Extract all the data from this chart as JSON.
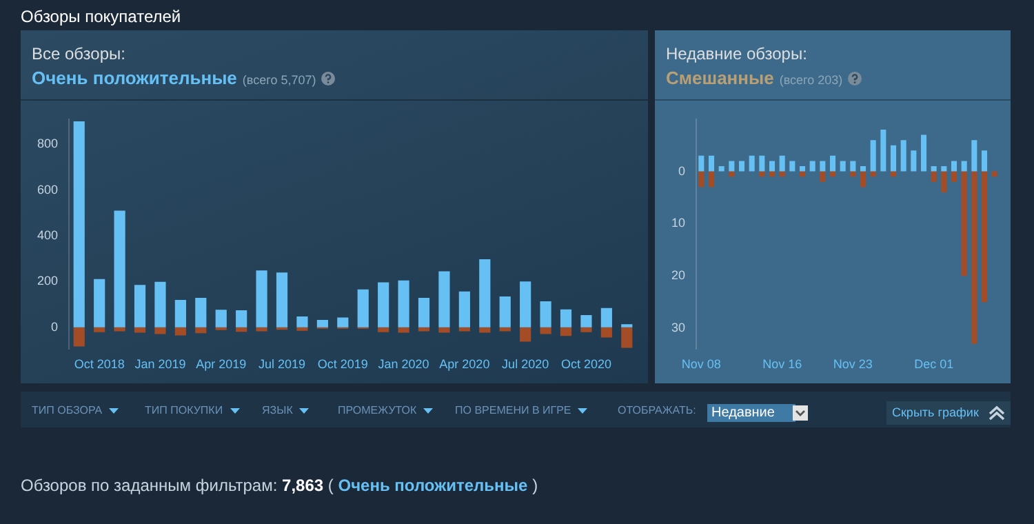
{
  "chart_data": [
    {
      "type": "other",
      "title": "Обзоры покупателей"
    },
    {
      "type": "bar",
      "title": "Все обзоры:",
      "subtitle": "Очень положительные",
      "annotations": [
        "(всего 5,707)"
      ],
      "stacked": true,
      "categories": [
        null,
        "Oct 2018",
        null,
        null,
        "Jan 2019",
        null,
        null,
        "Apr 2019",
        null,
        null,
        "Jul 2019",
        null,
        null,
        "Oct 2019",
        null,
        null,
        "Jan 2020",
        null,
        null,
        "Apr 2020",
        null,
        null,
        "Jul 2020",
        null,
        null,
        "Oct 2020",
        null,
        null
      ],
      "series": [
        {
          "color": "#66c0f4",
          "values": [
            900,
            211,
            510,
            186,
            199,
            120,
            129,
            77,
            75,
            249,
            240,
            48,
            33,
            43,
            166,
            197,
            205,
            129,
            245,
            157,
            298,
            135,
            201,
            114,
            79,
            54,
            85,
            14
          ]
        },
        {
          "color": "#a34c25",
          "values": [
            -83,
            -21,
            -17,
            -23,
            -29,
            -35,
            -25,
            -12,
            -19,
            -17,
            -10,
            -15,
            -6,
            -6,
            -6,
            -21,
            -23,
            -17,
            -23,
            -17,
            -23,
            -17,
            -62,
            -29,
            -37,
            -21,
            -44,
            -89
          ]
        }
      ],
      "ylim": [
        -95,
        910
      ],
      "yticks": [
        0,
        200,
        400,
        600,
        800
      ]
    },
    {
      "type": "bar",
      "title": "Недавние обзоры:",
      "subtitle": "Смешанные",
      "annotations": [
        "(всего 203)"
      ],
      "stacked": true,
      "categories": [
        "Nov 08",
        null,
        null,
        null,
        null,
        null,
        null,
        null,
        "Nov 16",
        null,
        null,
        null,
        null,
        null,
        null,
        "Nov 23",
        null,
        null,
        null,
        null,
        null,
        null,
        null,
        "Dec 01",
        null,
        null,
        null,
        null,
        null,
        null
      ],
      "series": [
        {
          "color": "#66c0f4",
          "values": [
            3,
            3,
            1,
            2,
            2,
            3,
            3,
            2,
            3,
            2,
            1,
            2,
            2,
            3,
            2,
            2,
            1,
            6,
            8,
            5,
            6,
            4,
            7,
            1,
            1,
            2,
            2,
            6,
            4,
            0
          ]
        },
        {
          "color": "#a34c25",
          "values": [
            -3,
            -3,
            0,
            -1,
            0,
            0,
            -1,
            -1,
            -1,
            0,
            -1,
            0,
            -2,
            -1,
            0,
            -1,
            -3,
            -1,
            0,
            -1,
            0,
            0,
            0,
            -2,
            -4,
            -2,
            -20,
            -33,
            -25,
            -1
          ]
        }
      ],
      "ylim": [
        -34,
        10
      ],
      "yticks": [
        0,
        {
          "value": -10,
          "label": "10"
        },
        {
          "value": -20,
          "label": "20"
        },
        {
          "value": -30,
          "label": "30"
        }
      ]
    },
    {
      "type": "other",
      "annotations": [
        "ТИП ОБЗОРА",
        "ТИП ПОКУПКИ",
        "ЯЗЫК",
        "ПРОМЕЖУТОК",
        "ПО ВРЕМЕНИ В ИГРЕ",
        "ОТОБРАЖАТЬ:",
        "Недавние",
        "Скрыть график",
        "Обзоров по заданным фильтрам:",
        "7,863",
        "(",
        "Очень положительные",
        ")"
      ]
    }
  ]
}
